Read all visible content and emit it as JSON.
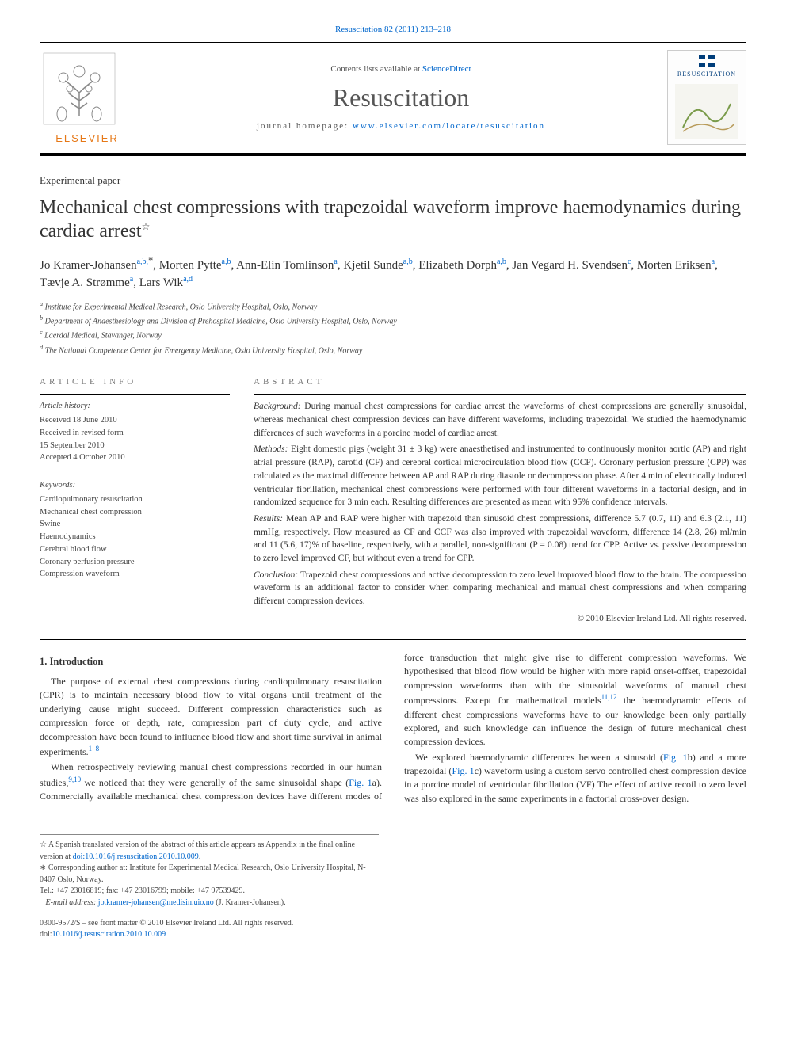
{
  "top_reference": "Resuscitation 82 (2011) 213–218",
  "masthead": {
    "contents_prefix": "Contents lists available at ",
    "contents_link": "ScienceDirect",
    "journal": "Resuscitation",
    "homepage_prefix": "journal homepage: ",
    "homepage_url": "www.elsevier.com/locate/resuscitation",
    "publisher": "ELSEVIER",
    "cover_label": "RESUSCITATION"
  },
  "article": {
    "type_label": "Experimental paper",
    "title_main": "Mechanical chest compressions with trapezoidal waveform improve haemodynamics during cardiac arrest",
    "title_note_marker": "☆"
  },
  "authors_html": "Jo Kramer-Johansen<sup class='aff-sup'>a,b,</sup><sup>*</sup>, Morten Pytte<sup class='aff-sup'>a,b</sup>, Ann-Elin Tomlinson<sup class='aff-sup'>a</sup>, Kjetil Sunde<sup class='aff-sup'>a,b</sup>, Elizabeth Dorph<sup class='aff-sup'>a,b</sup>, Jan Vegard H. Svendsen<sup class='aff-sup'>c</sup>, Morten Eriksen<sup class='aff-sup'>a</sup>, Tævje A. Strømme<sup class='aff-sup'>a</sup>, Lars Wik<sup class='aff-sup'>a,d</sup>",
  "affiliations": {
    "a": "Institute for Experimental Medical Research, Oslo University Hospital, Oslo, Norway",
    "b": "Department of Anaesthesiology and Division of Prehospital Medicine, Oslo University Hospital, Oslo, Norway",
    "c": "Laerdal Medical, Stavanger, Norway",
    "d": "The National Competence Center for Emergency Medicine, Oslo University Hospital, Oslo, Norway"
  },
  "article_info": {
    "header": "article info",
    "history_label": "Article history:",
    "received": "Received 18 June 2010",
    "revised1": "Received in revised form",
    "revised2": "15 September 2010",
    "accepted": "Accepted 4 October 2010",
    "keywords_label": "Keywords:",
    "keywords": [
      "Cardiopulmonary resuscitation",
      "Mechanical chest compression",
      "Swine",
      "Haemodynamics",
      "Cerebral blood flow",
      "Coronary perfusion pressure",
      "Compression waveform"
    ]
  },
  "abstract": {
    "header": "abstract",
    "background_label": "Background:",
    "background": " During manual chest compressions for cardiac arrest the waveforms of chest compressions are generally sinusoidal, whereas mechanical chest compression devices can have different waveforms, including trapezoidal. We studied the haemodynamic differences of such waveforms in a porcine model of cardiac arrest.",
    "methods_label": "Methods:",
    "methods": " Eight domestic pigs (weight 31 ± 3 kg) were anaesthetised and instrumented to continuously monitor aortic (AP) and right atrial pressure (RAP), carotid (CF) and cerebral cortical microcirculation blood flow (CCF). Coronary perfusion pressure (CPP) was calculated as the maximal difference between AP and RAP during diastole or decompression phase. After 4 min of electrically induced ventricular fibrillation, mechanical chest compressions were performed with four different waveforms in a factorial design, and in randomized sequence for 3 min each. Resulting differences are presented as mean with 95% confidence intervals.",
    "results_label": "Results:",
    "results": " Mean AP and RAP were higher with trapezoid than sinusoid chest compressions, difference 5.7 (0.7, 11) and 6.3 (2.1, 11) mmHg, respectively. Flow measured as CF and CCF was also improved with trapezoidal waveform, difference 14 (2.8, 26) ml/min and 11 (5.6, 17)% of baseline, respectively, with a parallel, non-significant (P = 0.08) trend for CPP. Active vs. passive decompression to zero level improved CF, but without even a trend for CPP.",
    "conclusion_label": "Conclusion:",
    "conclusion": " Trapezoid chest compressions and active decompression to zero level improved blood flow to the brain. The compression waveform is an additional factor to consider when comparing mechanical and manual chest compressions and when comparing different compression devices.",
    "copyright": "© 2010 Elsevier Ireland Ltd. All rights reserved."
  },
  "body": {
    "intro_heading": "1.  Introduction",
    "p1": "The purpose of external chest compressions during cardiopulmonary resuscitation (CPR) is to maintain necessary blood flow to vital organs until treatment of the underlying cause might succeed. Different compression characteristics such as compression force or depth, rate, compression part of duty cycle, and active decompression have been found to influence blood flow and short time survival in animal experiments.",
    "p1_cite": "1–8",
    "p2a": "When retrospectively reviewing manual chest compressions recorded in our human studies,",
    "p2_cite1": "9,10",
    "p2b": " we noticed that they were generally of the same sinusoidal shape (",
    "p2_fig1": "Fig. 1",
    "p2c": "a). Commercially available mechanical chest compression devices have different modes of force transduction that might give rise to different compression waveforms. We hypothesised that blood flow would be higher with more rapid onset-offset, trapezoidal compression waveforms than with the sinusoidal waveforms of manual chest compressions. Except for mathematical models",
    "p2_cite2": "11,12",
    "p2d": " the haemodynamic effects of different chest compressions waveforms have to our knowledge been only partially explored, and such knowledge can influence the design of future mechanical chest compression devices.",
    "p3a": "We explored haemodynamic differences between a sinusoid (",
    "p3_fig1": "Fig. 1",
    "p3b": "b) and a more trapezoidal (",
    "p3_fig2": "Fig. 1",
    "p3c": "c) waveform using a custom servo controlled chest compression device in a porcine model of ventricular fibrillation (VF) The effect of active recoil to zero level was also explored in the same experiments in a factorial cross-over design."
  },
  "footnotes": {
    "star_text": "A Spanish translated version of the abstract of this article appears as Appendix in the final online version at ",
    "star_doi": "doi:10.1016/j.resuscitation.2010.10.009",
    "corr_label": "Corresponding author at: Institute for Experimental Medical Research, Oslo University Hospital, N-0407 Oslo, Norway.",
    "tel": "Tel.: +47 23016819; fax: +47 23016799; mobile: +47 97539429.",
    "email_label": "E-mail address: ",
    "email": "jo.kramer-johansen@medisin.uio.no",
    "email_who": " (J. Kramer-Johansen)."
  },
  "footer": {
    "line1": "0300-9572/$ – see front matter © 2010 Elsevier Ireland Ltd. All rights reserved.",
    "line2_prefix": "doi:",
    "line2_doi": "10.1016/j.resuscitation.2010.10.009"
  },
  "colors": {
    "link": "#0066cc",
    "elsevier_orange": "#e67817",
    "text": "#333333",
    "muted": "#555555",
    "rule": "#000000"
  }
}
